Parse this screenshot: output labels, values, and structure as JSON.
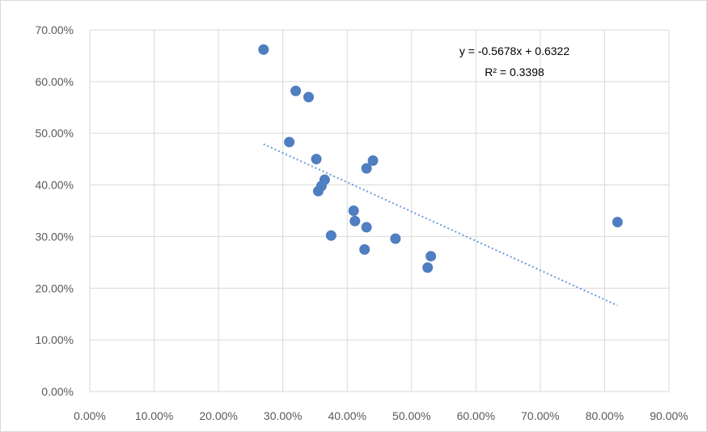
{
  "chart_data": {
    "type": "scatter",
    "xlim": [
      0,
      0.9
    ],
    "ylim": [
      0,
      0.7
    ],
    "x_ticks": [
      "0.00%",
      "10.00%",
      "20.00%",
      "30.00%",
      "40.00%",
      "50.00%",
      "60.00%",
      "70.00%",
      "80.00%",
      "90.00%"
    ],
    "y_ticks": [
      "0.00%",
      "10.00%",
      "20.00%",
      "30.00%",
      "40.00%",
      "50.00%",
      "60.00%",
      "70.00%"
    ],
    "grid": true,
    "marker_color": "#4f7ec1",
    "trendline_color": "#6b9bd1",
    "points": [
      {
        "x": 0.27,
        "y": 0.662
      },
      {
        "x": 0.32,
        "y": 0.582
      },
      {
        "x": 0.34,
        "y": 0.57
      },
      {
        "x": 0.31,
        "y": 0.483
      },
      {
        "x": 0.352,
        "y": 0.45
      },
      {
        "x": 0.44,
        "y": 0.447
      },
      {
        "x": 0.43,
        "y": 0.432
      },
      {
        "x": 0.365,
        "y": 0.41
      },
      {
        "x": 0.36,
        "y": 0.398
      },
      {
        "x": 0.355,
        "y": 0.388
      },
      {
        "x": 0.41,
        "y": 0.35
      },
      {
        "x": 0.412,
        "y": 0.33
      },
      {
        "x": 0.43,
        "y": 0.318
      },
      {
        "x": 0.375,
        "y": 0.302
      },
      {
        "x": 0.475,
        "y": 0.296
      },
      {
        "x": 0.427,
        "y": 0.275
      },
      {
        "x": 0.53,
        "y": 0.262
      },
      {
        "x": 0.525,
        "y": 0.24
      },
      {
        "x": 0.82,
        "y": 0.328
      }
    ],
    "trendline": {
      "slope": -0.5678,
      "intercept": 0.6322,
      "x_range": [
        0.27,
        0.82
      ]
    },
    "equation": "y = -0.5678x + 0.6322",
    "r_squared": "R² = 0.3398"
  }
}
